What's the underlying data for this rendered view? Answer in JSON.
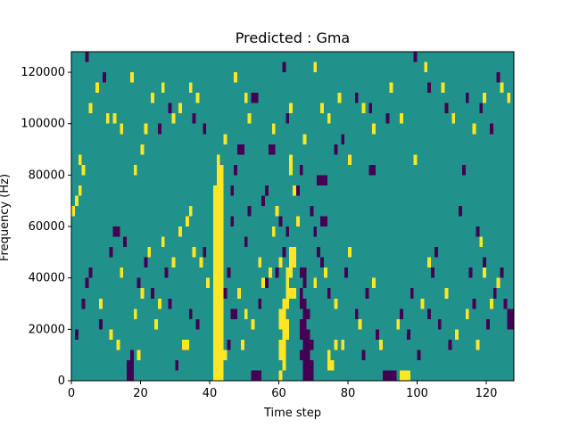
{
  "chart_data": {
    "type": "heatmap",
    "title": "Predicted : Gma",
    "xlabel": "Time step",
    "ylabel": "Frequency (Hz)",
    "xlim": [
      0,
      128
    ],
    "ylim": [
      0,
      128000
    ],
    "x_ticks": [
      0,
      20,
      40,
      60,
      80,
      100,
      120
    ],
    "y_ticks": [
      0,
      20000,
      40000,
      60000,
      80000,
      100000,
      120000
    ],
    "x_tick_labels": [
      "0",
      "20",
      "40",
      "60",
      "80",
      "100",
      "120"
    ],
    "y_tick_labels": [
      "0",
      "20000",
      "40000",
      "60000",
      "80000",
      "100000",
      "120000"
    ],
    "grid": false,
    "legend": "none",
    "colors": {
      "background": "#21918c",
      "low": "#440154",
      "high": "#fde725"
    },
    "cell": {
      "time_width": 1,
      "freq_height": 4000
    },
    "low_cells": [
      {
        "t": 16,
        "f": 0
      },
      {
        "t": 17,
        "f": 0
      },
      {
        "t": 16,
        "f": 4000
      },
      {
        "t": 17,
        "f": 4000
      },
      {
        "t": 17,
        "f": 8000
      },
      {
        "t": 67,
        "f": 0
      },
      {
        "t": 68,
        "f": 0
      },
      {
        "t": 69,
        "f": 0
      },
      {
        "t": 67,
        "f": 4000
      },
      {
        "t": 68,
        "f": 4000
      },
      {
        "t": 69,
        "f": 4000
      },
      {
        "t": 66,
        "f": 8000
      },
      {
        "t": 67,
        "f": 8000
      },
      {
        "t": 68,
        "f": 8000
      },
      {
        "t": 67,
        "f": 12000
      },
      {
        "t": 68,
        "f": 12000
      },
      {
        "t": 69,
        "f": 12000
      },
      {
        "t": 66,
        "f": 16000
      },
      {
        "t": 67,
        "f": 16000
      },
      {
        "t": 68,
        "f": 16000
      },
      {
        "t": 66,
        "f": 20000
      },
      {
        "t": 67,
        "f": 20000
      },
      {
        "t": 67,
        "f": 24000
      },
      {
        "t": 68,
        "f": 24000
      },
      {
        "t": 66,
        "f": 28000
      },
      {
        "t": 67,
        "f": 28000
      },
      {
        "t": 66,
        "f": 32000
      },
      {
        "t": 67,
        "f": 36000
      },
      {
        "t": 66,
        "f": 40000
      },
      {
        "t": 67,
        "f": 40000
      },
      {
        "t": 52,
        "f": 0
      },
      {
        "t": 53,
        "f": 0
      },
      {
        "t": 54,
        "f": 0
      },
      {
        "t": 90,
        "f": 0
      },
      {
        "t": 91,
        "f": 0
      },
      {
        "t": 92,
        "f": 0
      },
      {
        "t": 93,
        "f": 0
      },
      {
        "t": 127,
        "f": 24000
      },
      {
        "t": 127,
        "f": 20000
      },
      {
        "t": 126,
        "f": 24000
      },
      {
        "t": 126,
        "f": 20000
      },
      {
        "t": 30,
        "f": 4000
      },
      {
        "t": 45,
        "f": 12000
      },
      {
        "t": 46,
        "f": 24000
      },
      {
        "t": 47,
        "f": 24000
      },
      {
        "t": 54,
        "f": 28000
      },
      {
        "t": 56,
        "f": 36000
      },
      {
        "t": 60,
        "f": 60000
      },
      {
        "t": 71,
        "f": 76000
      },
      {
        "t": 72,
        "f": 76000
      },
      {
        "t": 73,
        "f": 76000
      },
      {
        "t": 72,
        "f": 60000
      },
      {
        "t": 73,
        "f": 60000
      },
      {
        "t": 48,
        "f": 88000
      },
      {
        "t": 49,
        "f": 88000
      },
      {
        "t": 57,
        "f": 88000
      },
      {
        "t": 58,
        "f": 88000
      },
      {
        "t": 86,
        "f": 80000
      },
      {
        "t": 87,
        "f": 80000
      },
      {
        "t": 12,
        "f": 56000
      },
      {
        "t": 13,
        "f": 56000
      },
      {
        "t": 1,
        "f": 16000
      },
      {
        "t": 3,
        "f": 28000
      },
      {
        "t": 4,
        "f": 36000
      },
      {
        "t": 5,
        "f": 40000
      },
      {
        "t": 8,
        "f": 20000
      },
      {
        "t": 11,
        "f": 48000
      },
      {
        "t": 15,
        "f": 52000
      },
      {
        "t": 19,
        "f": 36000
      },
      {
        "t": 21,
        "f": 44000
      },
      {
        "t": 23,
        "f": 32000
      },
      {
        "t": 27,
        "f": 40000
      },
      {
        "t": 28,
        "f": 28000
      },
      {
        "t": 34,
        "f": 24000
      },
      {
        "t": 36,
        "f": 20000
      },
      {
        "t": 38,
        "f": 48000
      },
      {
        "t": 44,
        "f": 32000
      },
      {
        "t": 45,
        "f": 40000
      },
      {
        "t": 46,
        "f": 60000
      },
      {
        "t": 46,
        "f": 72000
      },
      {
        "t": 47,
        "f": 80000
      },
      {
        "t": 50,
        "f": 52000
      },
      {
        "t": 51,
        "f": 64000
      },
      {
        "t": 55,
        "f": 68000
      },
      {
        "t": 56,
        "f": 72000
      },
      {
        "t": 59,
        "f": 40000
      },
      {
        "t": 61,
        "f": 48000
      },
      {
        "t": 62,
        "f": 56000
      },
      {
        "t": 65,
        "f": 72000
      },
      {
        "t": 66,
        "f": 80000
      },
      {
        "t": 69,
        "f": 64000
      },
      {
        "t": 70,
        "f": 56000
      },
      {
        "t": 71,
        "f": 48000
      },
      {
        "t": 72,
        "f": 44000
      },
      {
        "t": 74,
        "f": 32000
      },
      {
        "t": 76,
        "f": 88000
      },
      {
        "t": 79,
        "f": 40000
      },
      {
        "t": 82,
        "f": 24000
      },
      {
        "t": 84,
        "f": 8000
      },
      {
        "t": 85,
        "f": 32000
      },
      {
        "t": 88,
        "f": 16000
      },
      {
        "t": 95,
        "f": 24000
      },
      {
        "t": 97,
        "f": 16000
      },
      {
        "t": 98,
        "f": 32000
      },
      {
        "t": 100,
        "f": 8000
      },
      {
        "t": 103,
        "f": 24000
      },
      {
        "t": 104,
        "f": 40000
      },
      {
        "t": 105,
        "f": 48000
      },
      {
        "t": 106,
        "f": 20000
      },
      {
        "t": 109,
        "f": 12000
      },
      {
        "t": 112,
        "f": 64000
      },
      {
        "t": 113,
        "f": 80000
      },
      {
        "t": 115,
        "f": 40000
      },
      {
        "t": 116,
        "f": 28000
      },
      {
        "t": 117,
        "f": 56000
      },
      {
        "t": 119,
        "f": 44000
      },
      {
        "t": 120,
        "f": 20000
      },
      {
        "t": 122,
        "f": 32000
      },
      {
        "t": 124,
        "f": 40000
      },
      {
        "t": 125,
        "f": 28000
      },
      {
        "t": 4,
        "f": 124000
      },
      {
        "t": 9,
        "f": 116000
      },
      {
        "t": 25,
        "f": 96000
      },
      {
        "t": 28,
        "f": 104000
      },
      {
        "t": 35,
        "f": 100000
      },
      {
        "t": 38,
        "f": 96000
      },
      {
        "t": 52,
        "f": 108000
      },
      {
        "t": 53,
        "f": 108000
      },
      {
        "t": 61,
        "f": 120000
      },
      {
        "t": 62,
        "f": 100000
      },
      {
        "t": 78,
        "f": 92000
      },
      {
        "t": 82,
        "f": 108000
      },
      {
        "t": 86,
        "f": 104000
      },
      {
        "t": 91,
        "f": 100000
      },
      {
        "t": 99,
        "f": 124000
      },
      {
        "t": 103,
        "f": 112000
      },
      {
        "t": 108,
        "f": 104000
      },
      {
        "t": 114,
        "f": 108000
      },
      {
        "t": 118,
        "f": 104000
      },
      {
        "t": 121,
        "f": 96000
      },
      {
        "t": 123,
        "f": 116000
      }
    ],
    "high_cells": [
      {
        "t": 41,
        "f": 0
      },
      {
        "t": 42,
        "f": 0
      },
      {
        "t": 43,
        "f": 0
      },
      {
        "t": 41,
        "f": 4000
      },
      {
        "t": 42,
        "f": 4000
      },
      {
        "t": 43,
        "f": 4000
      },
      {
        "t": 41,
        "f": 8000
      },
      {
        "t": 42,
        "f": 8000
      },
      {
        "t": 43,
        "f": 8000
      },
      {
        "t": 44,
        "f": 8000
      },
      {
        "t": 41,
        "f": 12000
      },
      {
        "t": 42,
        "f": 12000
      },
      {
        "t": 43,
        "f": 12000
      },
      {
        "t": 41,
        "f": 16000
      },
      {
        "t": 42,
        "f": 16000
      },
      {
        "t": 43,
        "f": 16000
      },
      {
        "t": 41,
        "f": 20000
      },
      {
        "t": 42,
        "f": 20000
      },
      {
        "t": 43,
        "f": 20000
      },
      {
        "t": 41,
        "f": 24000
      },
      {
        "t": 42,
        "f": 24000
      },
      {
        "t": 43,
        "f": 24000
      },
      {
        "t": 41,
        "f": 28000
      },
      {
        "t": 42,
        "f": 28000
      },
      {
        "t": 43,
        "f": 28000
      },
      {
        "t": 41,
        "f": 32000
      },
      {
        "t": 42,
        "f": 32000
      },
      {
        "t": 43,
        "f": 32000
      },
      {
        "t": 41,
        "f": 36000
      },
      {
        "t": 42,
        "f": 36000
      },
      {
        "t": 43,
        "f": 36000
      },
      {
        "t": 41,
        "f": 40000
      },
      {
        "t": 42,
        "f": 40000
      },
      {
        "t": 43,
        "f": 40000
      },
      {
        "t": 41,
        "f": 44000
      },
      {
        "t": 42,
        "f": 44000
      },
      {
        "t": 43,
        "f": 44000
      },
      {
        "t": 41,
        "f": 48000
      },
      {
        "t": 42,
        "f": 48000
      },
      {
        "t": 43,
        "f": 48000
      },
      {
        "t": 41,
        "f": 52000
      },
      {
        "t": 42,
        "f": 52000
      },
      {
        "t": 43,
        "f": 52000
      },
      {
        "t": 41,
        "f": 56000
      },
      {
        "t": 42,
        "f": 56000
      },
      {
        "t": 43,
        "f": 56000
      },
      {
        "t": 41,
        "f": 60000
      },
      {
        "t": 42,
        "f": 60000
      },
      {
        "t": 43,
        "f": 60000
      },
      {
        "t": 41,
        "f": 64000
      },
      {
        "t": 42,
        "f": 64000
      },
      {
        "t": 43,
        "f": 64000
      },
      {
        "t": 41,
        "f": 68000
      },
      {
        "t": 42,
        "f": 68000
      },
      {
        "t": 43,
        "f": 68000
      },
      {
        "t": 41,
        "f": 72000
      },
      {
        "t": 42,
        "f": 72000
      },
      {
        "t": 43,
        "f": 72000
      },
      {
        "t": 42,
        "f": 76000
      },
      {
        "t": 43,
        "f": 76000
      },
      {
        "t": 42,
        "f": 80000
      },
      {
        "t": 43,
        "f": 80000
      },
      {
        "t": 42,
        "f": 84000
      },
      {
        "t": 60,
        "f": 8000
      },
      {
        "t": 61,
        "f": 8000
      },
      {
        "t": 60,
        "f": 12000
      },
      {
        "t": 61,
        "f": 12000
      },
      {
        "t": 61,
        "f": 16000
      },
      {
        "t": 62,
        "f": 16000
      },
      {
        "t": 60,
        "f": 20000
      },
      {
        "t": 61,
        "f": 20000
      },
      {
        "t": 62,
        "f": 20000
      },
      {
        "t": 60,
        "f": 24000
      },
      {
        "t": 61,
        "f": 24000
      },
      {
        "t": 61,
        "f": 28000
      },
      {
        "t": 62,
        "f": 28000
      },
      {
        "t": 62,
        "f": 32000
      },
      {
        "t": 63,
        "f": 32000
      },
      {
        "t": 62,
        "f": 36000
      },
      {
        "t": 63,
        "f": 40000
      },
      {
        "t": 63,
        "f": 44000
      },
      {
        "t": 64,
        "f": 44000
      },
      {
        "t": 63,
        "f": 48000
      },
      {
        "t": 64,
        "f": 48000
      },
      {
        "t": 63,
        "f": 84000
      },
      {
        "t": 63,
        "f": 80000
      },
      {
        "t": 64,
        "f": 72000
      },
      {
        "t": 60,
        "f": 0
      },
      {
        "t": 61,
        "f": 4000
      },
      {
        "t": 95,
        "f": 0
      },
      {
        "t": 96,
        "f": 0
      },
      {
        "t": 97,
        "f": 0
      },
      {
        "t": 74,
        "f": 4000
      },
      {
        "t": 75,
        "f": 4000
      },
      {
        "t": 74,
        "f": 8000
      },
      {
        "t": 32,
        "f": 12000
      },
      {
        "t": 33,
        "f": 12000
      },
      {
        "t": 49,
        "f": 12000
      },
      {
        "t": 76,
        "f": 12000
      },
      {
        "t": 60,
        "f": 44000
      },
      {
        "t": 62,
        "f": 40000
      },
      {
        "t": 0,
        "f": 64000
      },
      {
        "t": 1,
        "f": 68000
      },
      {
        "t": 2,
        "f": 72000
      },
      {
        "t": 3,
        "f": 80000
      },
      {
        "t": 2,
        "f": 84000
      },
      {
        "t": 5,
        "f": 104000
      },
      {
        "t": 7,
        "f": 112000
      },
      {
        "t": 10,
        "f": 100000
      },
      {
        "t": 12,
        "f": 100000
      },
      {
        "t": 14,
        "f": 96000
      },
      {
        "t": 17,
        "f": 116000
      },
      {
        "t": 18,
        "f": 80000
      },
      {
        "t": 20,
        "f": 88000
      },
      {
        "t": 21,
        "f": 96000
      },
      {
        "t": 23,
        "f": 108000
      },
      {
        "t": 26,
        "f": 112000
      },
      {
        "t": 29,
        "f": 100000
      },
      {
        "t": 31,
        "f": 104000
      },
      {
        "t": 34,
        "f": 112000
      },
      {
        "t": 36,
        "f": 108000
      },
      {
        "t": 44,
        "f": 92000
      },
      {
        "t": 47,
        "f": 116000
      },
      {
        "t": 50,
        "f": 108000
      },
      {
        "t": 51,
        "f": 100000
      },
      {
        "t": 58,
        "f": 96000
      },
      {
        "t": 63,
        "f": 104000
      },
      {
        "t": 67,
        "f": 92000
      },
      {
        "t": 70,
        "f": 120000
      },
      {
        "t": 72,
        "f": 104000
      },
      {
        "t": 74,
        "f": 100000
      },
      {
        "t": 77,
        "f": 108000
      },
      {
        "t": 80,
        "f": 84000
      },
      {
        "t": 84,
        "f": 104000
      },
      {
        "t": 87,
        "f": 96000
      },
      {
        "t": 92,
        "f": 112000
      },
      {
        "t": 95,
        "f": 100000
      },
      {
        "t": 99,
        "f": 84000
      },
      {
        "t": 102,
        "f": 120000
      },
      {
        "t": 107,
        "f": 112000
      },
      {
        "t": 110,
        "f": 100000
      },
      {
        "t": 116,
        "f": 96000
      },
      {
        "t": 119,
        "f": 108000
      },
      {
        "t": 124,
        "f": 112000
      },
      {
        "t": 126,
        "f": 108000
      },
      {
        "t": 8,
        "f": 28000
      },
      {
        "t": 11,
        "f": 16000
      },
      {
        "t": 13,
        "f": 12000
      },
      {
        "t": 14,
        "f": 40000
      },
      {
        "t": 18,
        "f": 24000
      },
      {
        "t": 19,
        "f": 8000
      },
      {
        "t": 20,
        "f": 32000
      },
      {
        "t": 22,
        "f": 48000
      },
      {
        "t": 24,
        "f": 20000
      },
      {
        "t": 25,
        "f": 28000
      },
      {
        "t": 26,
        "f": 52000
      },
      {
        "t": 29,
        "f": 44000
      },
      {
        "t": 31,
        "f": 56000
      },
      {
        "t": 33,
        "f": 60000
      },
      {
        "t": 34,
        "f": 64000
      },
      {
        "t": 35,
        "f": 48000
      },
      {
        "t": 37,
        "f": 44000
      },
      {
        "t": 39,
        "f": 36000
      },
      {
        "t": 48,
        "f": 32000
      },
      {
        "t": 50,
        "f": 24000
      },
      {
        "t": 52,
        "f": 20000
      },
      {
        "t": 54,
        "f": 44000
      },
      {
        "t": 55,
        "f": 36000
      },
      {
        "t": 57,
        "f": 40000
      },
      {
        "t": 58,
        "f": 56000
      },
      {
        "t": 59,
        "f": 64000
      },
      {
        "t": 64,
        "f": 32000
      },
      {
        "t": 65,
        "f": 60000
      },
      {
        "t": 70,
        "f": 36000
      },
      {
        "t": 73,
        "f": 40000
      },
      {
        "t": 76,
        "f": 28000
      },
      {
        "t": 78,
        "f": 12000
      },
      {
        "t": 80,
        "f": 48000
      },
      {
        "t": 83,
        "f": 20000
      },
      {
        "t": 87,
        "f": 36000
      },
      {
        "t": 89,
        "f": 12000
      },
      {
        "t": 94,
        "f": 20000
      },
      {
        "t": 101,
        "f": 28000
      },
      {
        "t": 103,
        "f": 44000
      },
      {
        "t": 108,
        "f": 32000
      },
      {
        "t": 111,
        "f": 16000
      },
      {
        "t": 114,
        "f": 24000
      },
      {
        "t": 117,
        "f": 12000
      },
      {
        "t": 118,
        "f": 52000
      },
      {
        "t": 119,
        "f": 40000
      },
      {
        "t": 121,
        "f": 28000
      },
      {
        "t": 123,
        "f": 36000
      }
    ]
  }
}
